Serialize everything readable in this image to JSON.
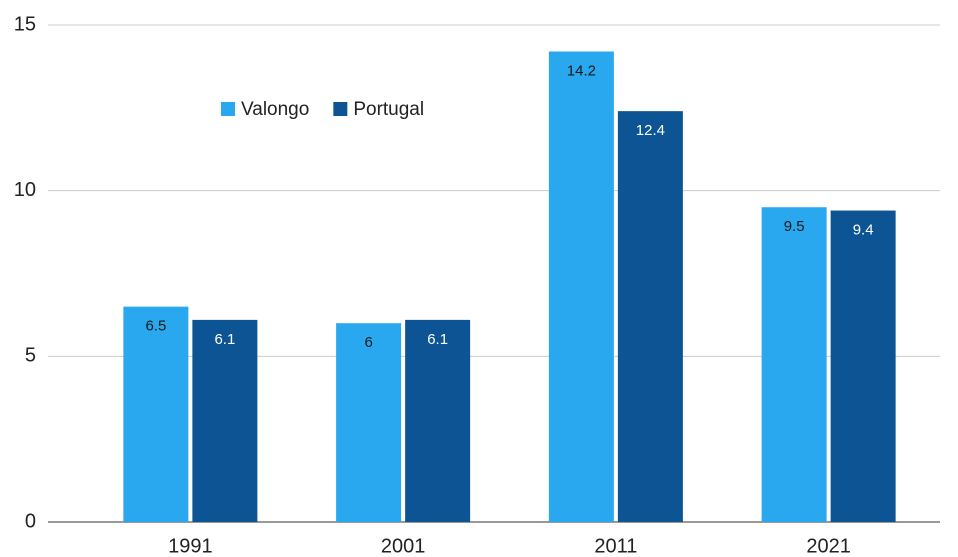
{
  "chart_data": {
    "type": "bar",
    "categories": [
      "1991",
      "2001",
      "2011",
      "2021"
    ],
    "series": [
      {
        "name": "Valongo",
        "color": "#29a8ef",
        "values": [
          6.5,
          6,
          14.2,
          9.5
        ]
      },
      {
        "name": "Portugal",
        "color": "#0d5495",
        "values": [
          6.1,
          6.1,
          12.4,
          9.4
        ]
      }
    ],
    "ylim": [
      0,
      15
    ],
    "yticks": [
      0,
      5,
      10,
      15
    ],
    "grid": true,
    "legend": "top-left"
  }
}
